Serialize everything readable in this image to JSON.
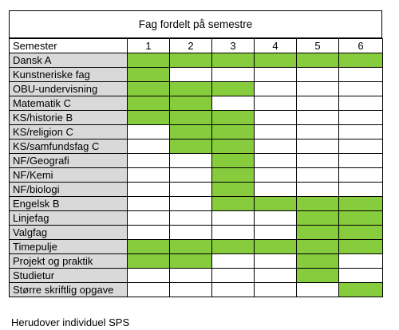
{
  "title": "Fag fordelt på semestre",
  "header": {
    "subject_label": "Semester",
    "semesters": [
      "1",
      "2",
      "3",
      "4",
      "5",
      "6"
    ]
  },
  "highlight_color": "#86cc3c",
  "subject_bg_color": "#d9d9d9",
  "rows": [
    {
      "subject": "Dansk A",
      "cells": [
        true,
        true,
        true,
        true,
        true,
        true
      ]
    },
    {
      "subject": "Kunstneriske fag",
      "cells": [
        true,
        false,
        false,
        false,
        false,
        false
      ]
    },
    {
      "subject": "OBU-undervisning",
      "cells": [
        true,
        true,
        true,
        false,
        false,
        false
      ]
    },
    {
      "subject": "Matematik C",
      "cells": [
        true,
        true,
        false,
        false,
        false,
        false
      ]
    },
    {
      "subject": "KS/historie B",
      "cells": [
        true,
        true,
        true,
        false,
        false,
        false
      ]
    },
    {
      "subject": "KS/religion C",
      "cells": [
        false,
        true,
        true,
        false,
        false,
        false
      ]
    },
    {
      "subject": "KS/samfundsfag C",
      "cells": [
        false,
        true,
        true,
        false,
        false,
        false
      ]
    },
    {
      "subject": "NF/Geografi",
      "cells": [
        false,
        false,
        true,
        false,
        false,
        false
      ]
    },
    {
      "subject": "NF/Kemi",
      "cells": [
        false,
        false,
        true,
        false,
        false,
        false
      ]
    },
    {
      "subject": "NF/biologi",
      "cells": [
        false,
        false,
        true,
        false,
        false,
        false
      ]
    },
    {
      "subject": "Engelsk B",
      "cells": [
        false,
        false,
        true,
        true,
        true,
        true
      ]
    },
    {
      "subject": "Linjefag",
      "cells": [
        false,
        false,
        false,
        false,
        true,
        true
      ]
    },
    {
      "subject": "Valgfag",
      "cells": [
        false,
        false,
        false,
        false,
        true,
        true
      ]
    },
    {
      "subject": "Timepulje",
      "cells": [
        true,
        true,
        true,
        true,
        true,
        true
      ]
    },
    {
      "subject": "Projekt og praktik",
      "cells": [
        true,
        true,
        false,
        false,
        true,
        false
      ]
    },
    {
      "subject": "Studietur",
      "cells": [
        false,
        false,
        false,
        false,
        true,
        false
      ]
    },
    {
      "subject": "Større skriftlig opgave",
      "cells": [
        false,
        false,
        false,
        false,
        false,
        true
      ]
    }
  ],
  "footnote": "Herudover individuel SPS"
}
